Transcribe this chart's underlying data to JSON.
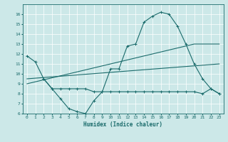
{
  "xlabel": "Humidex (Indice chaleur)",
  "xlim": [
    -0.5,
    23.5
  ],
  "ylim": [
    6,
    17
  ],
  "yticks": [
    6,
    7,
    8,
    9,
    10,
    11,
    12,
    13,
    14,
    15,
    16
  ],
  "xticks": [
    0,
    1,
    2,
    3,
    4,
    5,
    6,
    7,
    8,
    9,
    10,
    11,
    12,
    13,
    14,
    15,
    16,
    17,
    18,
    19,
    20,
    21,
    22,
    23
  ],
  "bg_color": "#cce8e8",
  "line_color": "#1a6b6b",
  "grid_color": "#ffffff",
  "lines": [
    {
      "x": [
        0,
        1,
        2,
        3,
        4,
        5,
        6,
        7,
        8,
        9,
        10,
        11,
        12,
        13,
        14,
        15,
        16,
        17,
        18,
        19,
        20,
        21,
        22,
        23
      ],
      "y": [
        11.8,
        11.2,
        9.5,
        8.5,
        7.5,
        6.5,
        6.2,
        6.0,
        7.3,
        8.2,
        10.5,
        10.5,
        12.8,
        13.0,
        15.2,
        15.8,
        16.2,
        16.0,
        14.8,
        13.0,
        11.0,
        9.5,
        8.5,
        8.0
      ],
      "marker": true
    },
    {
      "x": [
        2,
        3,
        4,
        5,
        6,
        7,
        8,
        9,
        10,
        11,
        12,
        13,
        14,
        15,
        16,
        17,
        18,
        19,
        20,
        21,
        22,
        23
      ],
      "y": [
        9.5,
        8.5,
        8.5,
        8.5,
        8.5,
        8.5,
        8.2,
        8.2,
        8.2,
        8.2,
        8.2,
        8.2,
        8.2,
        8.2,
        8.2,
        8.2,
        8.2,
        8.2,
        8.2,
        8.0,
        8.5,
        8.0
      ],
      "marker": true
    },
    {
      "x": [
        0,
        20,
        23
      ],
      "y": [
        9.0,
        13.0,
        13.0
      ],
      "marker": false
    },
    {
      "x": [
        0,
        23
      ],
      "y": [
        9.5,
        11.0
      ],
      "marker": false
    }
  ]
}
